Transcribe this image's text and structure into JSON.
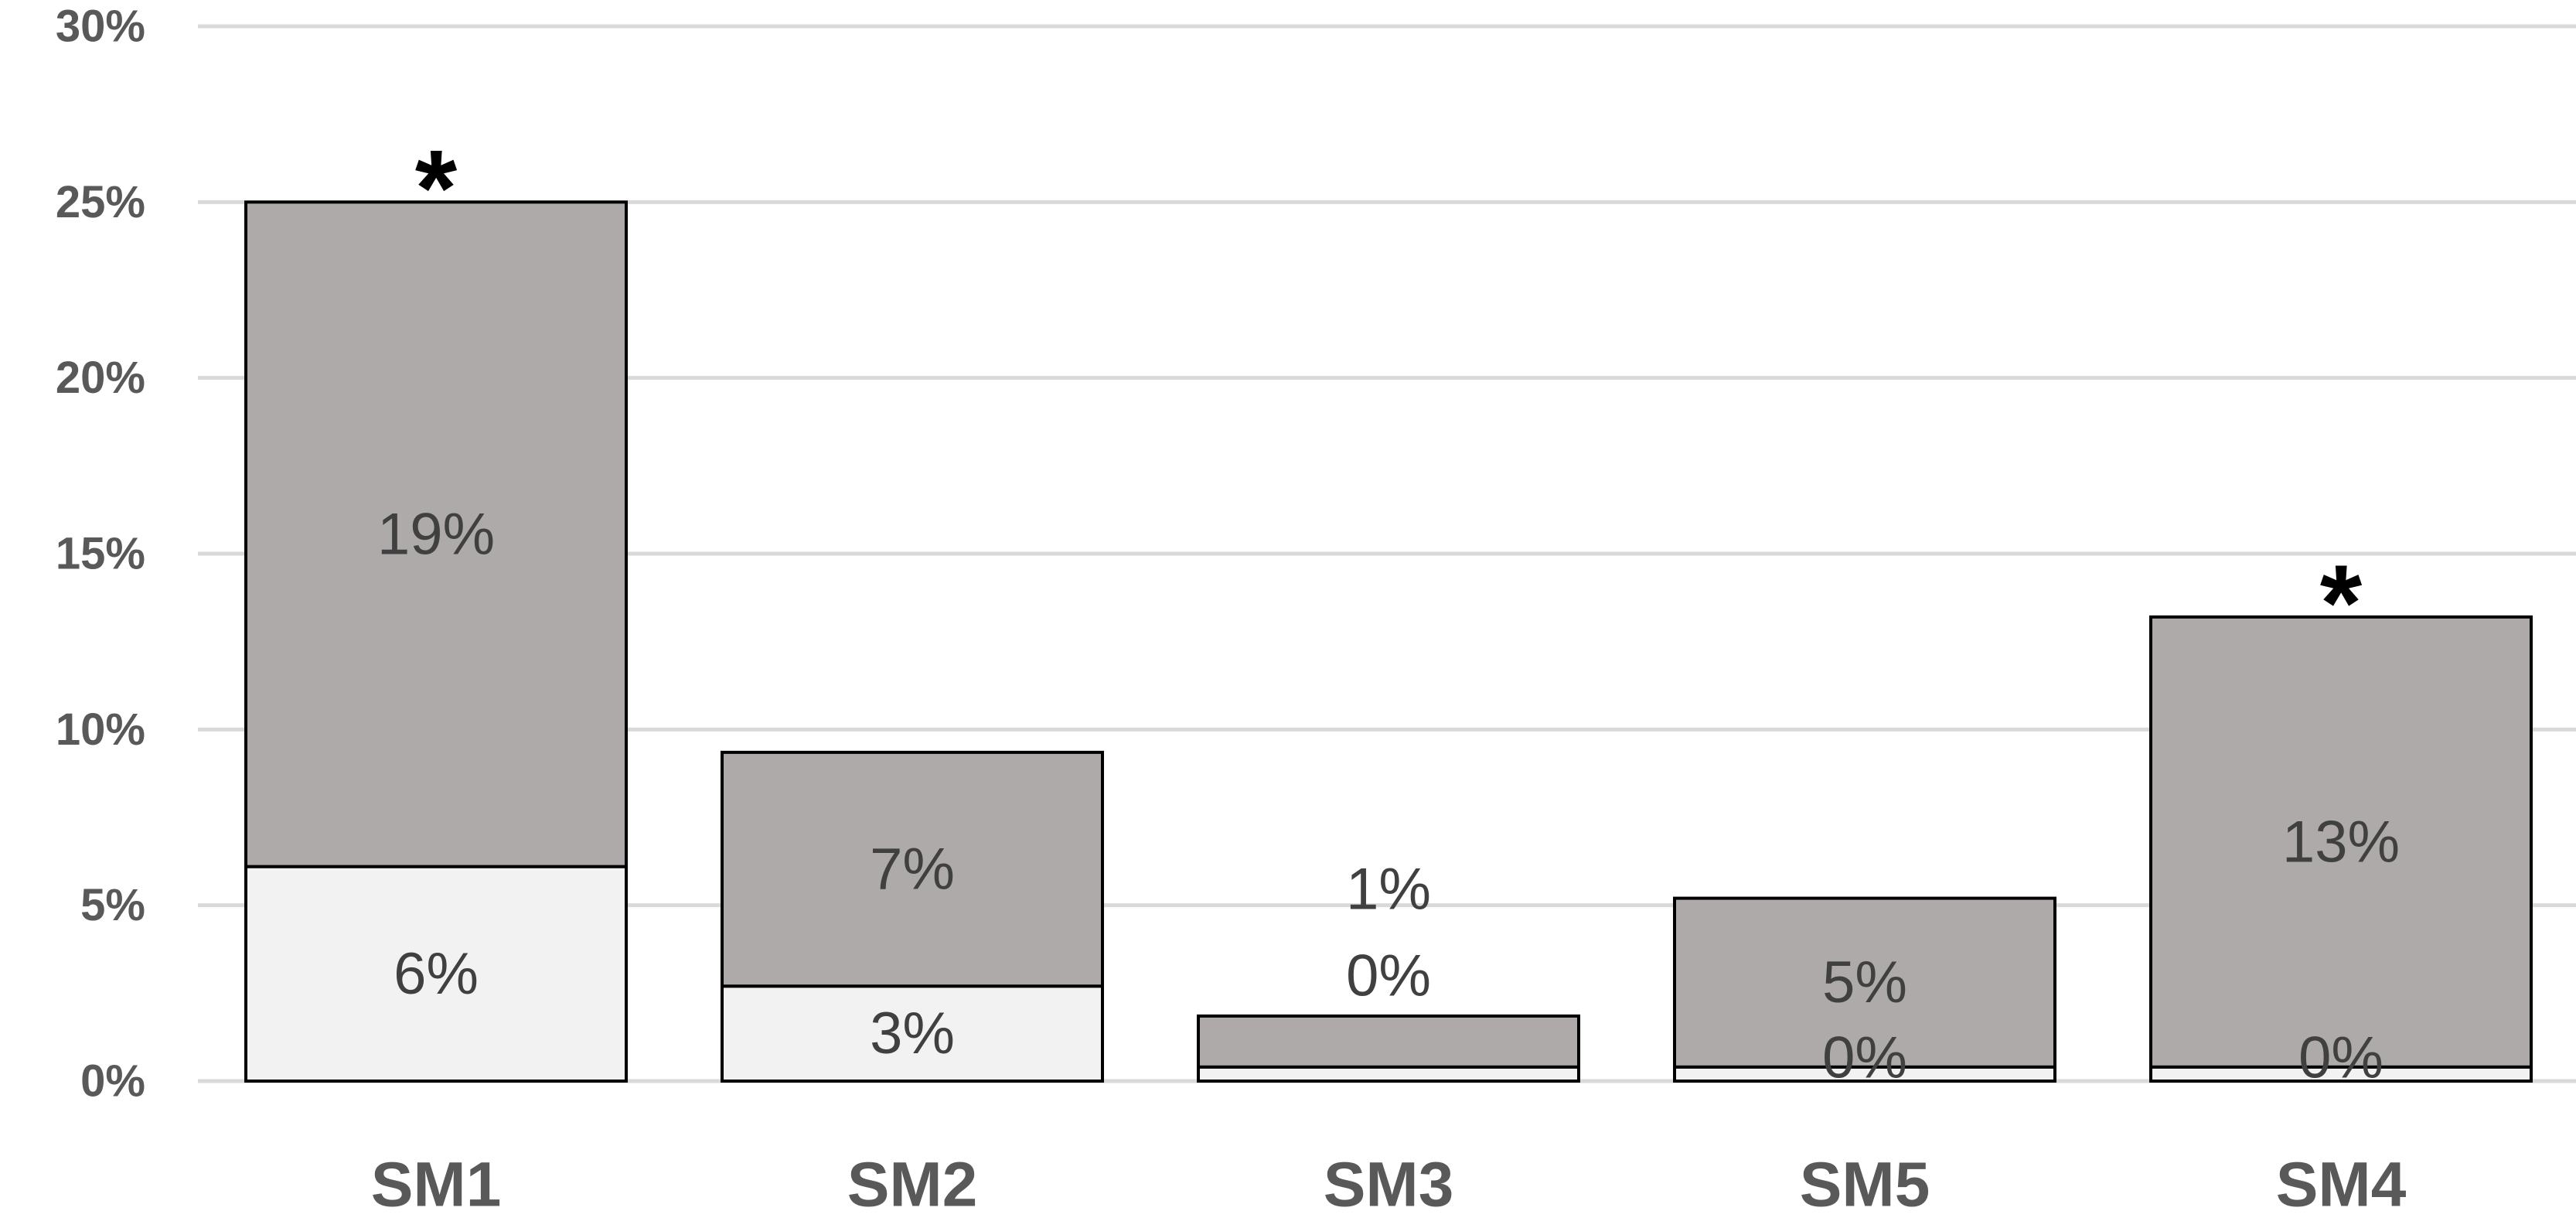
{
  "chart_data": {
    "type": "bar",
    "stacked": true,
    "categories": [
      "SM1",
      "SM2",
      "SM3",
      "SM5",
      "SM4"
    ],
    "series": [
      {
        "values": [
          6.1,
          2.7,
          0.4,
          0.4,
          0.4
        ],
        "labels": [
          "6%",
          "3%",
          "0%",
          "0%",
          "0%"
        ],
        "color": "#f2f2f2"
      },
      {
        "values": [
          18.9,
          6.65,
          1.45,
          4.8,
          12.8
        ],
        "labels": [
          "19%",
          "7%",
          "1%",
          "5%",
          "13%"
        ],
        "color": "#aeaaaa"
      }
    ],
    "annotations": [
      {
        "category": "SM1",
        "text": "*"
      },
      {
        "category": "SM4",
        "text": "*"
      }
    ],
    "ylim": [
      0,
      30
    ],
    "yticks": [
      "0%",
      "5%",
      "10%",
      "15%",
      "20%",
      "25%",
      "30%"
    ],
    "ytick_values": [
      0,
      5,
      10,
      15,
      20,
      25,
      30
    ],
    "grid": true,
    "legend": "none",
    "gridline_color": "#d9d9d9",
    "axis_text_color": "#595959",
    "bar_outline_color": "#000000"
  }
}
